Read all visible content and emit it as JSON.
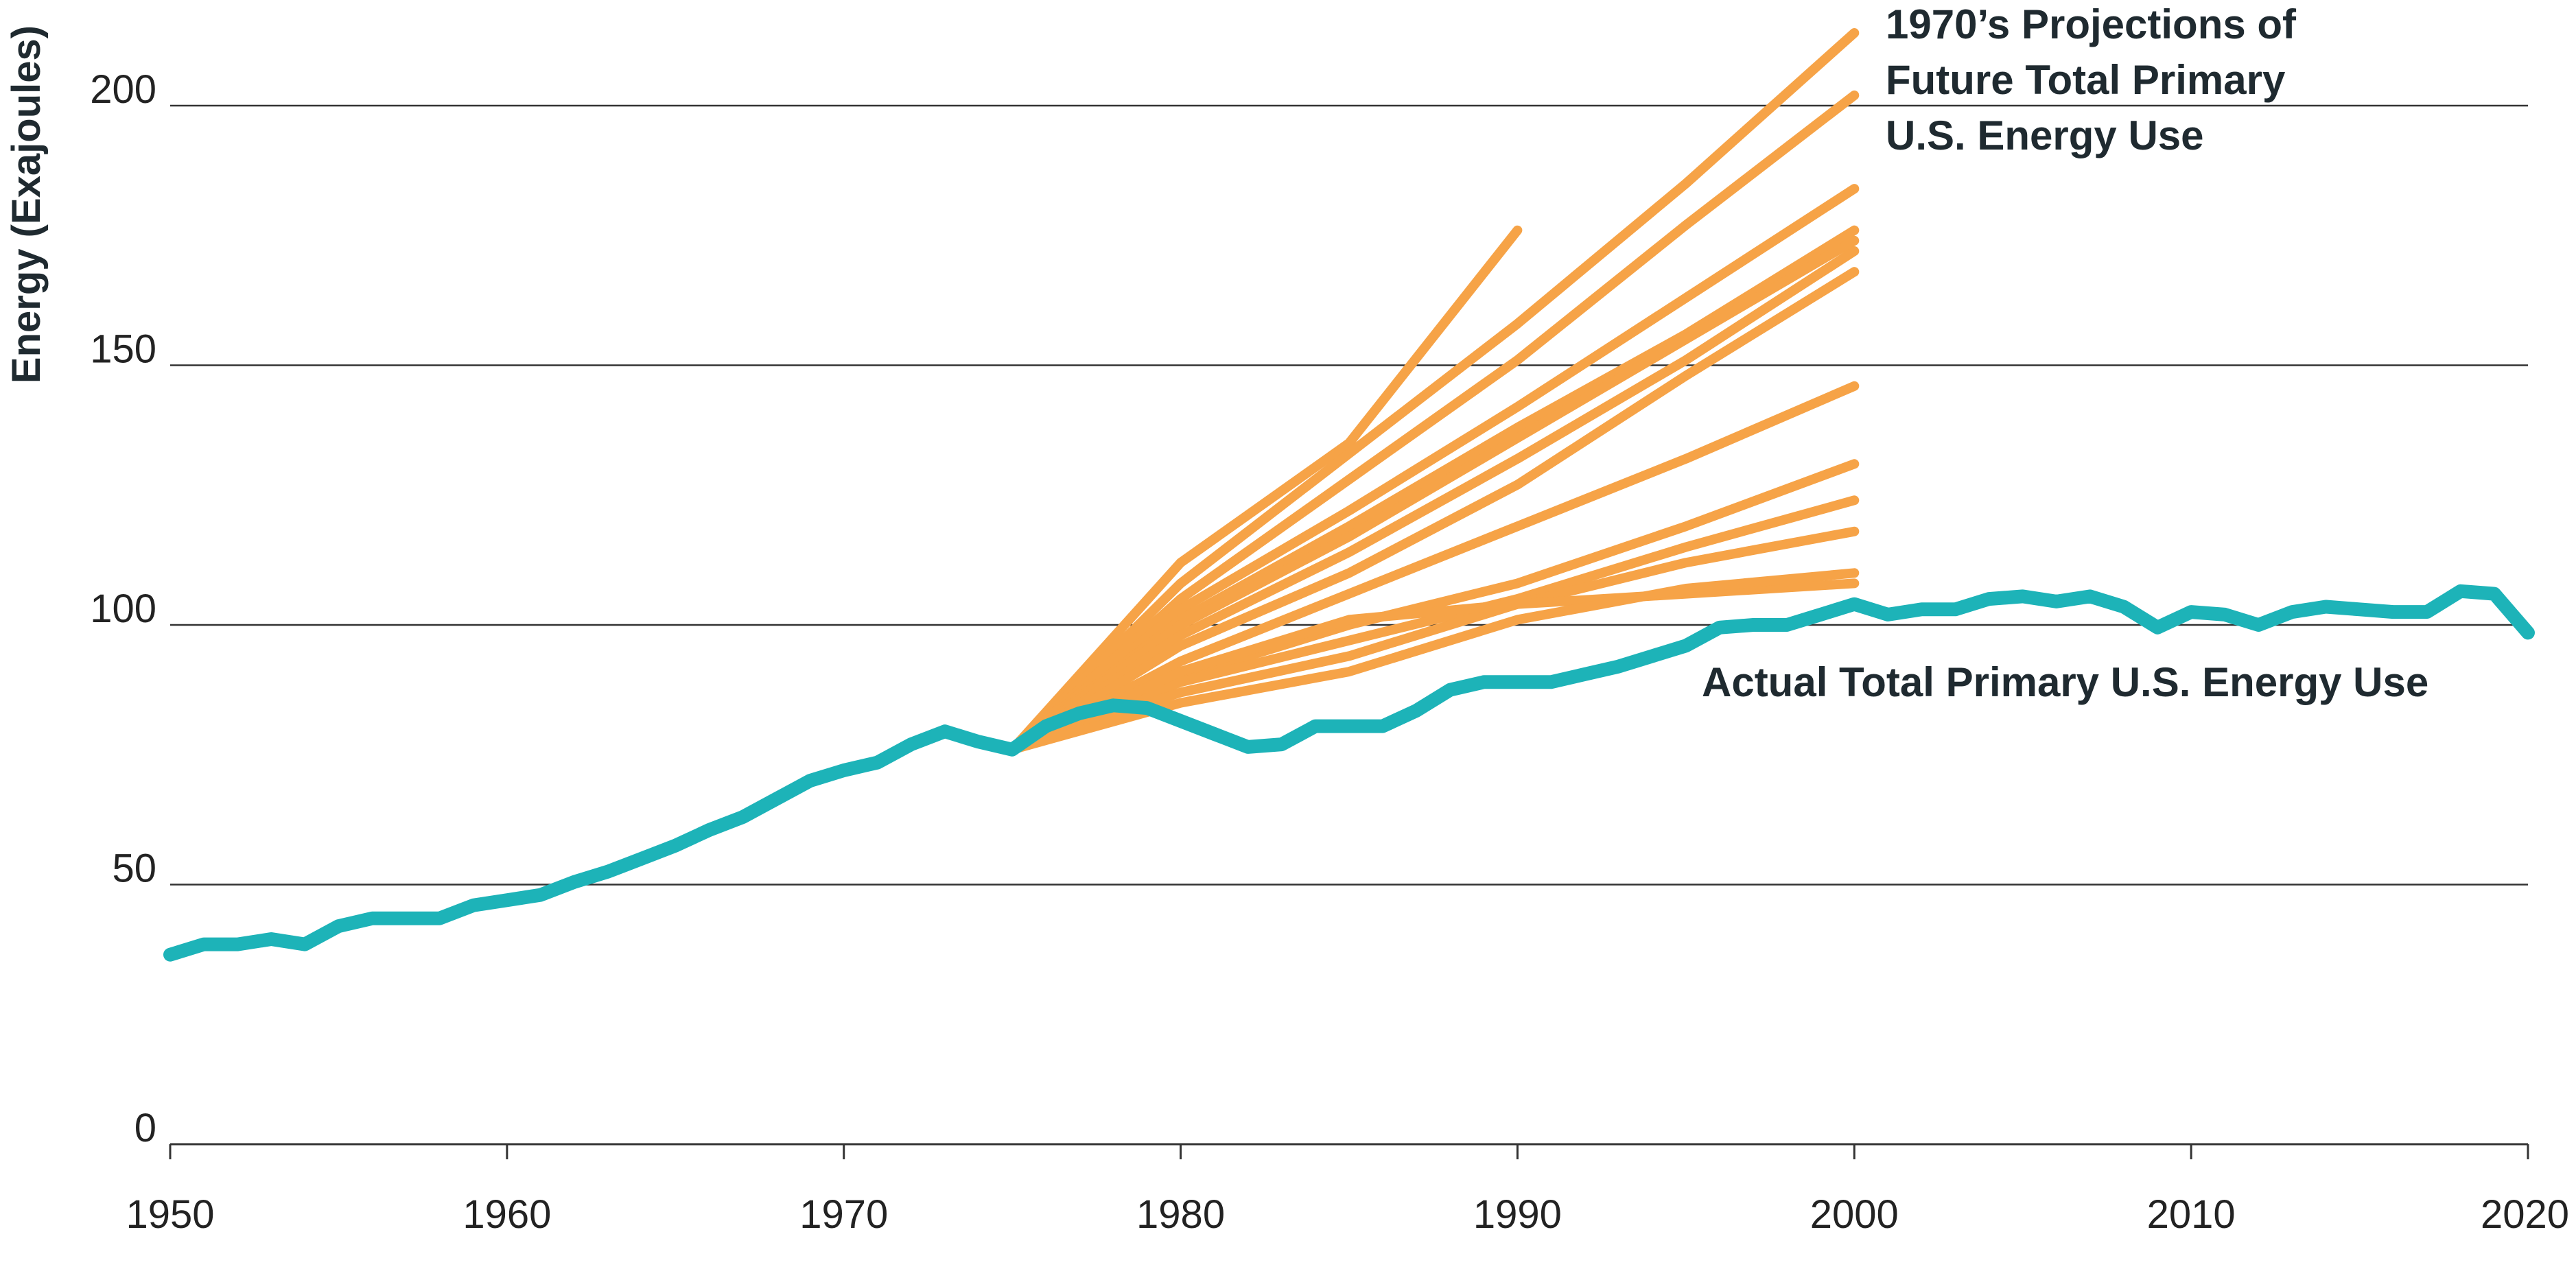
{
  "chart_data": {
    "type": "line",
    "ylabel": "Energy (Exajoules)",
    "xlabel": "",
    "xlim": [
      1950,
      2020
    ],
    "ylim": [
      0,
      200
    ],
    "x_ticks": [
      1950,
      1960,
      1970,
      1980,
      1990,
      2000,
      2010,
      2020
    ],
    "y_ticks": [
      0,
      50,
      100,
      150,
      200
    ],
    "grid": "horizontal",
    "colors": {
      "actual": "#1db3b8",
      "projections": "#f6a347",
      "text": "#1f2a30"
    },
    "annotations": {
      "projections": [
        "1970’s Projections of",
        "Future Total Primary",
        "U.S. Energy Use"
      ],
      "actual": "Actual Total Primary U.S. Energy Use"
    },
    "series": [
      {
        "name": "Actual Total Primary U.S. Energy Use",
        "x": [
          1950,
          1951,
          1952,
          1953,
          1954,
          1955,
          1956,
          1957,
          1958,
          1959,
          1960,
          1961,
          1962,
          1963,
          1964,
          1965,
          1966,
          1967,
          1968,
          1969,
          1970,
          1971,
          1972,
          1973,
          1974,
          1975,
          1976,
          1977,
          1978,
          1979,
          1980,
          1981,
          1982,
          1983,
          1984,
          1985,
          1986,
          1987,
          1988,
          1989,
          1990,
          1991,
          1992,
          1993,
          1994,
          1995,
          1996,
          1997,
          1998,
          1999,
          2000,
          2001,
          2002,
          2003,
          2004,
          2005,
          2006,
          2007,
          2008,
          2009,
          2010,
          2011,
          2012,
          2013,
          2014,
          2015,
          2016,
          2017,
          2018,
          2019,
          2020
        ],
        "y": [
          36.5,
          38.5,
          38.5,
          39.5,
          38.5,
          42,
          43.5,
          43.5,
          43.5,
          46,
          47,
          48,
          50.5,
          52.5,
          55,
          57.5,
          60.5,
          63,
          66.5,
          70,
          72,
          73.5,
          77,
          79.5,
          77.5,
          76,
          80.5,
          83,
          84.5,
          84,
          81.5,
          79,
          76.5,
          77,
          80.5,
          80.5,
          80.5,
          83.5,
          87.5,
          89,
          89,
          89,
          90.5,
          92,
          94,
          96,
          99.5,
          100,
          100,
          102,
          104,
          102,
          103,
          103,
          105,
          105.5,
          104.5,
          105.5,
          103.5,
          99.5,
          102.5,
          102,
          100,
          102.5,
          103.5,
          103,
          102.5,
          102.5,
          106.5,
          106,
          98.5
        ]
      }
    ],
    "projection_series": [
      {
        "x": [
          1975,
          1980,
          1985,
          1990
        ],
        "y": [
          76,
          112,
          135,
          176
        ]
      },
      {
        "x": [
          1975,
          1980,
          1985,
          1990,
          1995,
          2000
        ],
        "y": [
          76,
          108,
          133,
          158,
          185,
          214
        ]
      },
      {
        "x": [
          1975,
          1980,
          1985,
          1990,
          1995,
          2000
        ],
        "y": [
          76,
          105,
          128,
          151,
          177,
          202
        ]
      },
      {
        "x": [
          1975,
          1980,
          1985,
          1990,
          1995,
          2000
        ],
        "y": [
          76,
          103,
          122,
          142,
          163,
          184
        ]
      },
      {
        "x": [
          1975,
          1980,
          1985,
          1990,
          1995,
          2000
        ],
        "y": [
          76,
          101,
          119,
          138,
          156,
          176
        ]
      },
      {
        "x": [
          1975,
          1980,
          1985,
          1990,
          1995,
          2000
        ],
        "y": [
          76,
          100,
          117,
          136,
          155,
          174
        ]
      },
      {
        "x": [
          1975,
          1980,
          1985,
          1990,
          1995,
          2000
        ],
        "y": [
          76,
          98,
          114,
          132,
          151,
          172
        ]
      },
      {
        "x": [
          1975,
          1980,
          1985,
          1990,
          1995,
          2000
        ],
        "y": [
          76,
          96,
          110,
          127,
          148,
          168
        ]
      },
      {
        "x": [
          1975,
          1980,
          1985,
          1990,
          1995,
          2000
        ],
        "y": [
          76,
          93,
          106,
          119,
          132,
          146
        ]
      },
      {
        "x": [
          1975,
          1980,
          1985,
          1990,
          1995,
          2000
        ],
        "y": [
          76,
          90,
          100,
          108,
          119,
          131
        ]
      },
      {
        "x": [
          1975,
          1980,
          1985,
          1990,
          1995,
          2000
        ],
        "y": [
          76,
          89,
          97,
          105,
          115,
          124
        ]
      },
      {
        "x": [
          1975,
          1980,
          1985,
          1990,
          1995,
          2000
        ],
        "y": [
          76,
          87,
          94,
          104,
          112,
          118
        ]
      },
      {
        "x": [
          1975,
          1980,
          1985,
          1990,
          1995,
          2000
        ],
        "y": [
          76,
          91,
          101,
          104,
          106,
          108
        ]
      },
      {
        "x": [
          1975,
          1980,
          1985,
          1990,
          1995,
          2000
        ],
        "y": [
          76,
          85,
          91,
          101,
          107,
          110
        ]
      }
    ]
  }
}
